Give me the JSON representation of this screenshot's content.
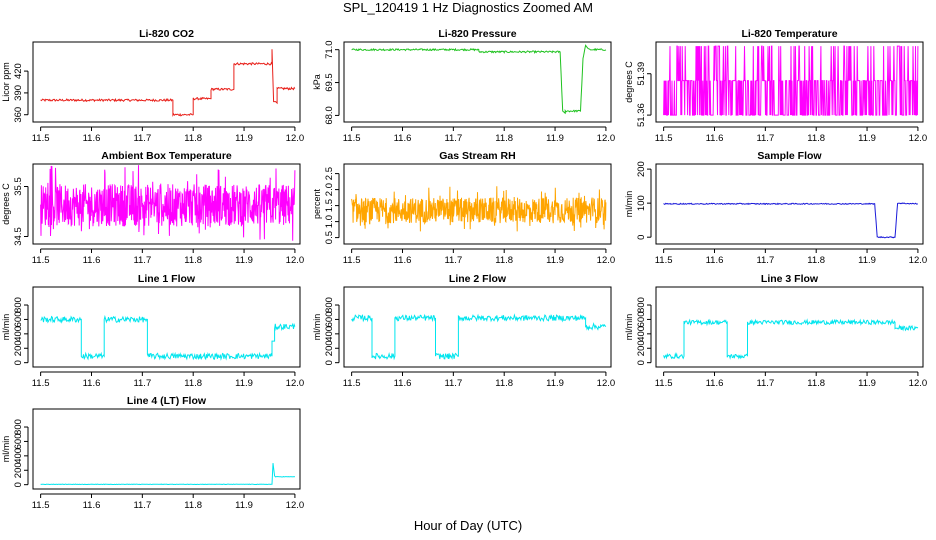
{
  "figure": {
    "title": "SPL_120419  1 Hz Diagnostics Zoomed AM",
    "xlabel": "Hour of Day (UTC)"
  },
  "chart_data": [
    {
      "type": "line",
      "title": "Li-820 CO2",
      "ylabel": "Licor ppm",
      "color": "#e8201a",
      "xlim": [
        11.485,
        12.01
      ],
      "ylim": [
        350,
        460
      ],
      "xticks": [
        11.5,
        11.6,
        11.7,
        11.8,
        11.9,
        12.0
      ],
      "xtick_labels": [
        "11.5",
        "11.6",
        "11.7",
        "11.8",
        "11.9",
        "12.0"
      ],
      "yticks": [
        360,
        390,
        420
      ],
      "ytick_labels": [
        "360",
        "390",
        "420"
      ],
      "series": [
        {
          "noise": 1.5,
          "x": [
            11.5,
            11.76,
            11.76,
            11.8,
            11.8,
            11.835,
            11.835,
            11.88,
            11.88,
            11.955,
            11.955,
            11.958,
            11.962,
            11.965,
            11.965,
            12.0
          ],
          "y": [
            380,
            380,
            360,
            360,
            382,
            382,
            395,
            395,
            430,
            430,
            450,
            378,
            378,
            376,
            396,
            396
          ]
        }
      ]
    },
    {
      "type": "line",
      "title": "Li-820 Pressure",
      "ylabel": "kPa",
      "color": "#1fc21f",
      "xlim": [
        11.485,
        12.01
      ],
      "ylim": [
        67.7,
        71.35
      ],
      "xticks": [
        11.5,
        11.6,
        11.7,
        11.8,
        11.9,
        12.0
      ],
      "xtick_labels": [
        "11.5",
        "11.6",
        "11.7",
        "11.8",
        "11.9",
        "12.0"
      ],
      "yticks": [
        68.0,
        69.5,
        71.0
      ],
      "ytick_labels": [
        "68.0",
        "69.5",
        "71.0"
      ],
      "series": [
        {
          "noise": 0.04,
          "x": [
            11.5,
            11.75,
            11.75,
            11.91,
            11.915,
            11.92,
            11.92,
            11.95,
            11.955,
            11.96,
            11.965,
            11.97,
            12.0
          ],
          "y": [
            71.0,
            71.0,
            70.9,
            70.9,
            68.2,
            68.1,
            68.2,
            68.2,
            70.6,
            71.2,
            71.05,
            71.0,
            71.0
          ]
        }
      ]
    },
    {
      "type": "line",
      "title": "Li-820 Temperature",
      "ylabel": "degrees C",
      "color": "#ff00ff",
      "xlim": [
        11.485,
        12.01
      ],
      "ylim": [
        51.355,
        51.413
      ],
      "xticks": [
        11.5,
        11.6,
        11.7,
        11.8,
        11.9,
        12.0
      ],
      "xtick_labels": [
        "11.5",
        "11.6",
        "11.7",
        "11.8",
        "11.9",
        "12.0"
      ],
      "yticks": [
        51.36,
        51.39
      ],
      "ytick_labels": [
        "51.36",
        "51.39"
      ],
      "series": [
        {
          "pattern": "quantized",
          "levels": [
            51.36,
            51.385
          ],
          "spike_level": 51.41,
          "x": [
            11.5,
            12.0
          ]
        }
      ]
    },
    {
      "type": "line",
      "title": "Ambient Box Temperature",
      "ylabel": "degrees C",
      "color": "#ff00ff",
      "xlim": [
        11.485,
        12.01
      ],
      "ylim": [
        34.35,
        35.95
      ],
      "xticks": [
        11.5,
        11.6,
        11.7,
        11.8,
        11.9,
        12.0
      ],
      "xtick_labels": [
        "11.5",
        "11.6",
        "11.7",
        "11.8",
        "11.9",
        "12.0"
      ],
      "yticks": [
        34.5,
        35.5
      ],
      "ytick_labels": [
        "34.5",
        "35.5"
      ],
      "series": [
        {
          "pattern": "band",
          "base": 35.05,
          "low": 34.7,
          "high": 35.55,
          "x": [
            11.5,
            12.0
          ]
        }
      ]
    },
    {
      "type": "line",
      "title": "Gas Stream RH",
      "ylabel": "percent",
      "color": "#ffa500",
      "xlim": [
        11.485,
        12.01
      ],
      "ylim": [
        0.3,
        2.8
      ],
      "xticks": [
        11.5,
        11.6,
        11.7,
        11.8,
        11.9,
        12.0
      ],
      "xtick_labels": [
        "11.5",
        "11.6",
        "11.7",
        "11.8",
        "11.9",
        "12.0"
      ],
      "yticks": [
        0.5,
        1.0,
        1.5,
        2.0,
        2.5
      ],
      "ytick_labels": [
        "0.5",
        "1.0",
        "1.5",
        "2.0",
        "2.5"
      ],
      "series": [
        {
          "pattern": "band",
          "base": 1.35,
          "low": 0.95,
          "high": 1.75,
          "x": [
            11.5,
            12.0
          ]
        }
      ]
    },
    {
      "type": "line",
      "title": "Sample Flow",
      "ylabel": "ml/min",
      "color": "#1a1ad9",
      "xlim": [
        11.485,
        12.01
      ],
      "ylim": [
        -20,
        215
      ],
      "xticks": [
        11.5,
        11.6,
        11.7,
        11.8,
        11.9,
        12.0
      ],
      "xtick_labels": [
        "11.5",
        "11.6",
        "11.7",
        "11.8",
        "11.9",
        "12.0"
      ],
      "yticks": [
        0,
        100,
        200
      ],
      "ytick_labels": [
        "0",
        "100",
        "200"
      ],
      "series": [
        {
          "noise": 1.5,
          "x": [
            11.5,
            11.915,
            11.92,
            11.955,
            11.96,
            12.0
          ],
          "y": [
            98,
            98,
            0,
            0,
            100,
            98
          ]
        }
      ]
    },
    {
      "type": "line",
      "title": "Line 1 Flow",
      "ylabel": "ml/min",
      "color": "#00e5ee",
      "xlim": [
        11.485,
        12.01
      ],
      "ylim": [
        -60,
        1050
      ],
      "xticks": [
        11.5,
        11.6,
        11.7,
        11.8,
        11.9,
        12.0
      ],
      "xtick_labels": [
        "11.5",
        "11.6",
        "11.7",
        "11.8",
        "11.9",
        "12.0"
      ],
      "yticks": [
        0,
        200,
        400,
        600,
        800
      ],
      "ytick_labels": [
        "0",
        "200",
        "400",
        "600",
        "800"
      ],
      "series": [
        {
          "noise": 40,
          "x": [
            11.5,
            11.58,
            11.58,
            11.625,
            11.625,
            11.71,
            11.71,
            11.955,
            11.955,
            11.96,
            11.96,
            12.0
          ],
          "y": [
            600,
            600,
            90,
            90,
            600,
            600,
            90,
            90,
            300,
            300,
            500,
            500
          ]
        }
      ]
    },
    {
      "type": "line",
      "title": "Line 2 Flow",
      "ylabel": "ml/min",
      "color": "#00e5ee",
      "xlim": [
        11.485,
        12.01
      ],
      "ylim": [
        -60,
        1050
      ],
      "xticks": [
        11.5,
        11.6,
        11.7,
        11.8,
        11.9,
        12.0
      ],
      "xtick_labels": [
        "11.5",
        "11.6",
        "11.7",
        "11.8",
        "11.9",
        "12.0"
      ],
      "yticks": [
        0,
        200,
        400,
        600,
        800
      ],
      "ytick_labels": [
        "0",
        "200",
        "400",
        "600",
        "800"
      ],
      "series": [
        {
          "noise": 40,
          "x": [
            11.5,
            11.54,
            11.54,
            11.585,
            11.585,
            11.665,
            11.665,
            11.71,
            11.71,
            11.96,
            11.96,
            12.0
          ],
          "y": [
            620,
            620,
            90,
            90,
            620,
            620,
            90,
            90,
            620,
            620,
            500,
            500
          ]
        }
      ]
    },
    {
      "type": "line",
      "title": "Line 3 Flow",
      "ylabel": "ml/min",
      "color": "#00e5ee",
      "xlim": [
        11.485,
        12.01
      ],
      "ylim": [
        -60,
        1050
      ],
      "xticks": [
        11.5,
        11.6,
        11.7,
        11.8,
        11.9,
        12.0
      ],
      "xtick_labels": [
        "11.5",
        "11.6",
        "11.7",
        "11.8",
        "11.9",
        "12.0"
      ],
      "yticks": [
        0,
        200,
        400,
        600,
        800
      ],
      "ytick_labels": [
        "0",
        "200",
        "400",
        "600",
        "800"
      ],
      "series": [
        {
          "noise": 30,
          "x": [
            11.5,
            11.54,
            11.54,
            11.625,
            11.625,
            11.665,
            11.665,
            11.955,
            11.955,
            12.0
          ],
          "y": [
            90,
            90,
            560,
            560,
            90,
            90,
            560,
            560,
            480,
            480
          ]
        }
      ]
    },
    {
      "type": "line",
      "title": "Line 4 (LT) Flow",
      "ylabel": "ml/min",
      "color": "#00e5ee",
      "xlim": [
        11.485,
        12.01
      ],
      "ylim": [
        -60,
        1050
      ],
      "xticks": [
        11.5,
        11.6,
        11.7,
        11.8,
        11.9,
        12.0
      ],
      "xtick_labels": [
        "11.5",
        "11.6",
        "11.7",
        "11.8",
        "11.9",
        "12.0"
      ],
      "yticks": [
        0,
        200,
        400,
        600,
        800
      ],
      "ytick_labels": [
        "0",
        "200",
        "400",
        "600",
        "800"
      ],
      "series": [
        {
          "noise": 3,
          "x": [
            11.5,
            11.955,
            11.957,
            11.96,
            11.962,
            12.0
          ],
          "y": [
            5,
            5,
            300,
            120,
            110,
            110
          ]
        }
      ]
    }
  ]
}
